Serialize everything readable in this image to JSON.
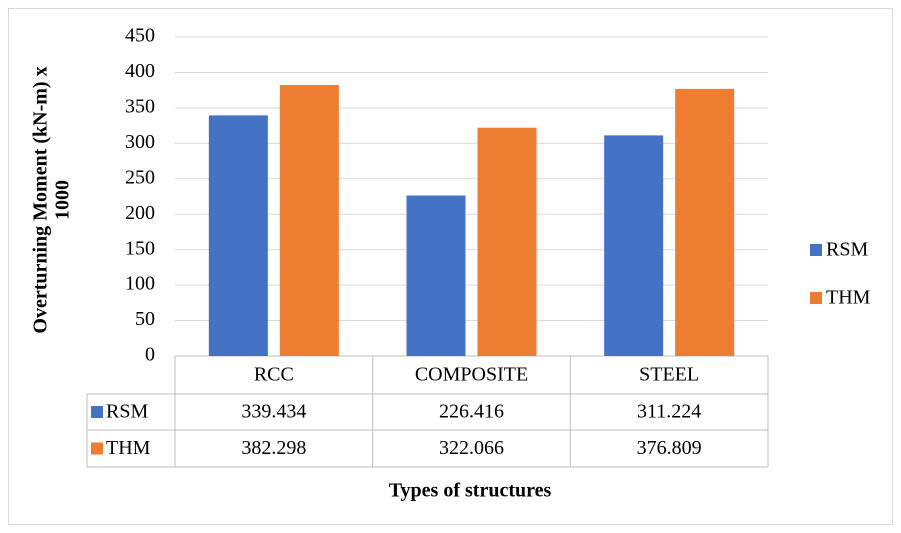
{
  "chart_data": {
    "type": "bar",
    "y_axis_label": [
      "Overturning Moment (kN-m) x",
      "1000"
    ],
    "x_axis_label": "Types of structures",
    "categories": [
      "RCC",
      "COMPOSITE",
      "STEEL"
    ],
    "series": [
      {
        "name": "RSM",
        "color": "#4472c4",
        "values": [
          339.434,
          226.416,
          311.224
        ]
      },
      {
        "name": "THM",
        "color": "#ed7d31",
        "values": [
          382.298,
          322.066,
          376.809
        ]
      }
    ],
    "ylim": [
      0,
      450
    ],
    "yticks": [
      0,
      50,
      100,
      150,
      200,
      250,
      300,
      350,
      400,
      450
    ],
    "grid": true,
    "legend": "right",
    "data_table": true
  }
}
